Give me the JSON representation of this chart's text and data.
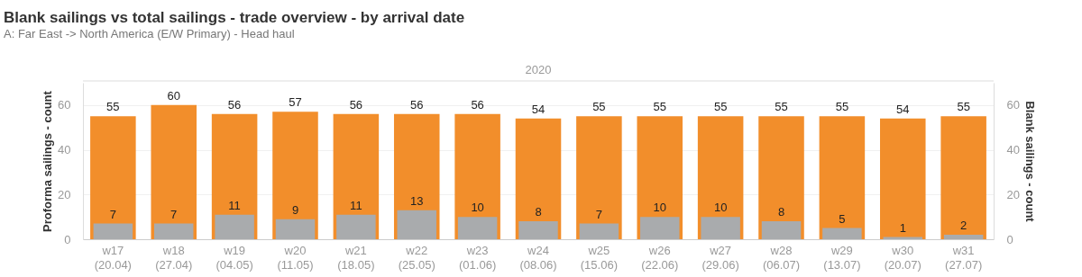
{
  "chart_data": {
    "type": "bar",
    "title": "Blank sailings vs total sailings  - trade overview - by arrival date",
    "subtitle": "A: Far East -> North America (E/W Primary) - Head haul",
    "annotations": [
      "2020"
    ],
    "categories": [
      "w17\n(20.04)",
      "w18\n(27.04)",
      "w19\n(04.05)",
      "w20\n(11.05)",
      "w21\n(18.05)",
      "w22\n(25.05)",
      "w23\n(01.06)",
      "w24\n(08.06)",
      "w25\n(15.06)",
      "w26\n(22.06)",
      "w27\n(29.06)",
      "w28\n(06.07)",
      "w29\n(13.07)",
      "w30\n(20.07)",
      "w31\n(27.07)"
    ],
    "series": [
      {
        "color": "#f28e2b",
        "values": [
          55,
          60,
          56,
          57,
          56,
          56,
          56,
          54,
          55,
          55,
          55,
          55,
          55,
          54,
          55
        ]
      },
      {
        "color": "#a9abad",
        "axis": "y2",
        "values": [
          7,
          7,
          11,
          9,
          11,
          13,
          10,
          8,
          7,
          10,
          10,
          8,
          5,
          1,
          2
        ]
      }
    ],
    "ylabel": "Proforma sailings - count",
    "y2label": "Blank sailings - count",
    "ylim": [
      0,
      70
    ],
    "yticks": [
      0,
      20,
      40,
      60
    ],
    "y2lim": [
      0,
      70
    ],
    "y2ticks": [
      0,
      20,
      40,
      60
    ],
    "grid": "y",
    "data_labels": true
  }
}
